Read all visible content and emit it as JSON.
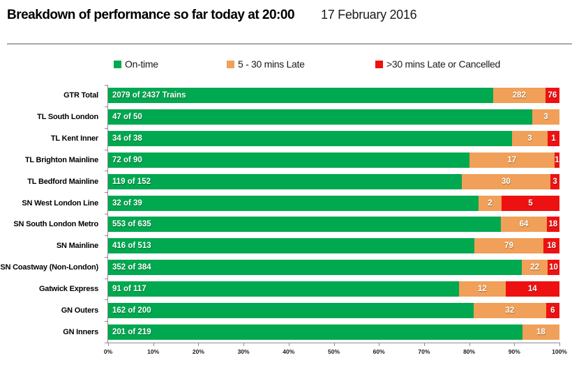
{
  "header": {
    "title": "Breakdown of performance so far today at 20:00",
    "date": "17 February 2016"
  },
  "legend": {
    "items": [
      {
        "key": "on-time",
        "label": "On-time",
        "color": "#00A84F"
      },
      {
        "key": "late-5-30",
        "label": "5 - 30 mins Late",
        "color": "#F0A058"
      },
      {
        "key": "late-30-or-cancelled",
        "label": ">30 mins Late or Cancelled",
        "color": "#EE1111"
      }
    ]
  },
  "chart_data": {
    "type": "bar",
    "orientation": "horizontal",
    "stacked": true,
    "unit": "percent of total trains (segments labelled with train counts)",
    "title": "Breakdown of performance so far today at 20:00",
    "categories": [
      "GTR Total",
      "TL South London",
      "TL Kent Inner",
      "TL Brighton Mainline",
      "TL Bedford Mainline",
      "SN West London Line",
      "SN South London Metro",
      "SN Mainline",
      "SN Coastway (Non-London)",
      "Gatwick Express",
      "GN Outers",
      "GN Inners"
    ],
    "totals": [
      2437,
      50,
      38,
      90,
      152,
      39,
      635,
      513,
      384,
      117,
      200,
      219
    ],
    "series": [
      {
        "key": "on-time",
        "name": "On-time",
        "color": "#00A84F",
        "values": [
          2079,
          47,
          34,
          72,
          119,
          32,
          553,
          416,
          352,
          91,
          162,
          201
        ]
      },
      {
        "key": "late-5-30",
        "name": "5 - 30 mins Late",
        "color": "#F0A058",
        "values": [
          282,
          3,
          3,
          17,
          30,
          2,
          64,
          79,
          22,
          12,
          32,
          18
        ]
      },
      {
        "key": "late-30-or-cancelled",
        "name": ">30 mins Late or Cancelled",
        "color": "#EE1111",
        "values": [
          76,
          0,
          1,
          1,
          3,
          5,
          18,
          18,
          10,
          14,
          6,
          0
        ]
      }
    ],
    "on_time_bar_labels": [
      "2079 of 2437 Trains",
      "47 of 50",
      "34 of 38",
      "72 of 90",
      "119 of 152",
      "32 of 39",
      "553 of 635",
      "416 of 513",
      "352 of 384",
      "91 of 117",
      "162 of 200",
      "201 of 219"
    ],
    "x_tick_labels": [
      "0%",
      "10%",
      "20%",
      "30%",
      "40%",
      "50%",
      "60%",
      "70%",
      "80%",
      "90%",
      "100%"
    ],
    "xlim": [
      0,
      100
    ],
    "grid": false,
    "legend_position": "top"
  }
}
